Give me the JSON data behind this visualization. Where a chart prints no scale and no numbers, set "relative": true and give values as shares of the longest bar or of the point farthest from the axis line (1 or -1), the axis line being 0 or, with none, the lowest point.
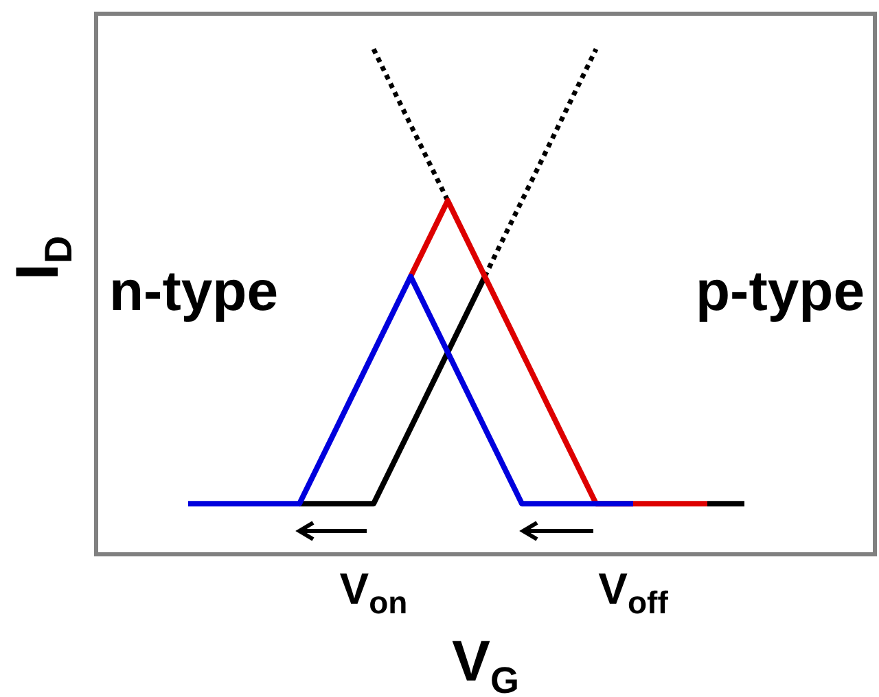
{
  "chart_data": {
    "type": "line",
    "relative": true,
    "xlabel": "V$_{G}$",
    "ylabel": "I$_{D}$",
    "line_style": "solid",
    "tick_labels": "x",
    "categories": [
      null,
      null,
      null,
      null,
      null,
      "V$_{on}$",
      null,
      null,
      null,
      null,
      null,
      null,
      "V$_{off}$",
      null,
      null,
      null
    ],
    "series": [
      {
        "color": "#000000",
        "values": [
          null,
          null,
          null,
          0.1,
          0.1,
          0.1,
          0.25,
          0.4,
          0.55,
          null,
          null,
          null,
          null,
          null,
          0.1,
          0.1
        ]
      },
      {
        "color": "#000000",
        "line_style": "dotted",
        "values": [
          null,
          null,
          null,
          null,
          null,
          1,
          0.85,
          0.7,
          null,
          null,
          null,
          null,
          null,
          null,
          null,
          null
        ]
      },
      {
        "color": "#000000",
        "line_style": "dotted",
        "values": [
          null,
          null,
          null,
          null,
          null,
          null,
          null,
          null,
          0.55,
          0.7,
          0.85,
          1,
          null,
          null,
          null,
          null
        ]
      },
      {
        "color": "#dd0000",
        "values": [
          null,
          null,
          null,
          null,
          null,
          null,
          0.55,
          0.7,
          0.55,
          0.4,
          0.25,
          0.1,
          0.1,
          0.1,
          0.1,
          null
        ]
      },
      {
        "color": "#0000dd",
        "values": [
          0.1,
          0.1,
          0.1,
          0.1,
          0.25,
          0.4,
          0.55,
          0.4,
          0.25,
          0.1,
          0.1,
          0.1,
          0.1,
          null,
          null,
          null
        ]
      }
    ],
    "annotations": [
      "n-type",
      "p-type"
    ]
  }
}
